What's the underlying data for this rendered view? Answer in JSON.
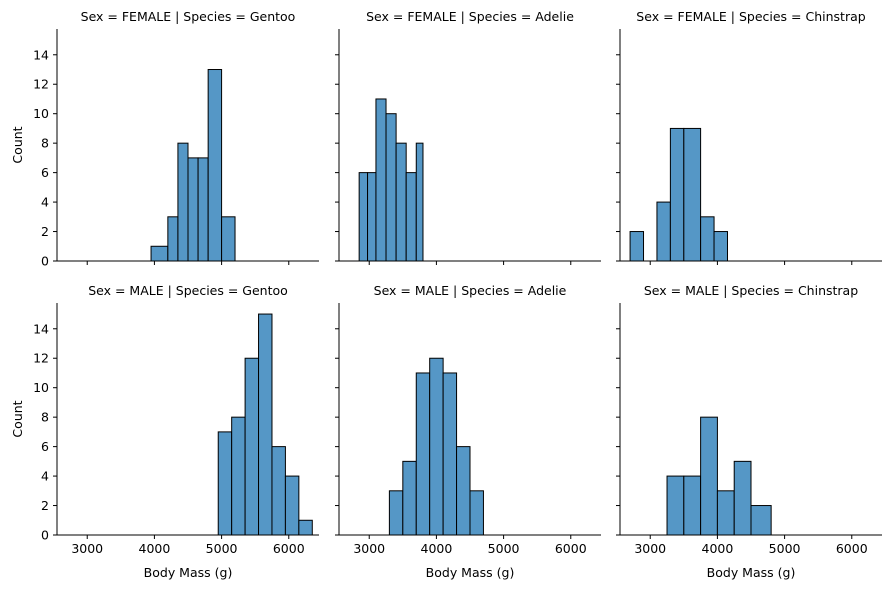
{
  "figure": {
    "bar_color": "#5597c6",
    "edge_color": "#000000",
    "xlabel": "Body Mass (g)",
    "ylabel": "Count",
    "xticks": [
      3000,
      4000,
      5000,
      6000
    ],
    "yticks": [
      0,
      2,
      4,
      6,
      8,
      10,
      12,
      14
    ],
    "xlim": [
      2550,
      6450
    ],
    "ylim": [
      0,
      15.75
    ]
  },
  "chart_data": [
    {
      "type": "bar",
      "title": "Sex = FEMALE | Species = Gentoo",
      "row": 0,
      "col": 0,
      "bins": [
        {
          "x0": 3950,
          "x1": 4200,
          "count": 1
        },
        {
          "x0": 4200,
          "x1": 4350,
          "count": 3
        },
        {
          "x0": 4350,
          "x1": 4500,
          "count": 8
        },
        {
          "x0": 4500,
          "x1": 4650,
          "count": 7
        },
        {
          "x0": 4650,
          "x1": 4800,
          "count": 7
        },
        {
          "x0": 4800,
          "x1": 5000,
          "count": 13
        },
        {
          "x0": 5000,
          "x1": 5200,
          "count": 3
        }
      ]
    },
    {
      "type": "bar",
      "title": "Sex = FEMALE | Species = Adelie",
      "row": 0,
      "col": 1,
      "bins": [
        {
          "x0": 2850,
          "x1": 2975,
          "count": 6
        },
        {
          "x0": 2975,
          "x1": 3100,
          "count": 6
        },
        {
          "x0": 3100,
          "x1": 3250,
          "count": 11
        },
        {
          "x0": 3250,
          "x1": 3400,
          "count": 10
        },
        {
          "x0": 3400,
          "x1": 3550,
          "count": 8
        },
        {
          "x0": 3550,
          "x1": 3700,
          "count": 6
        },
        {
          "x0": 3700,
          "x1": 3800,
          "count": 8
        }
      ]
    },
    {
      "type": "bar",
      "title": "Sex = FEMALE | Species = Chinstrap",
      "row": 0,
      "col": 2,
      "bins": [
        {
          "x0": 2700,
          "x1": 2900,
          "count": 2
        },
        {
          "x0": 3100,
          "x1": 3300,
          "count": 4
        },
        {
          "x0": 3300,
          "x1": 3500,
          "count": 9
        },
        {
          "x0": 3500,
          "x1": 3750,
          "count": 9
        },
        {
          "x0": 3750,
          "x1": 3950,
          "count": 3
        },
        {
          "x0": 3950,
          "x1": 4150,
          "count": 2
        }
      ]
    },
    {
      "type": "bar",
      "title": "Sex = MALE | Species = Gentoo",
      "row": 1,
      "col": 0,
      "bins": [
        {
          "x0": 4950,
          "x1": 5150,
          "count": 7
        },
        {
          "x0": 5150,
          "x1": 5350,
          "count": 8
        },
        {
          "x0": 5350,
          "x1": 5550,
          "count": 12
        },
        {
          "x0": 5550,
          "x1": 5750,
          "count": 15
        },
        {
          "x0": 5750,
          "x1": 5950,
          "count": 6
        },
        {
          "x0": 5950,
          "x1": 6150,
          "count": 4
        },
        {
          "x0": 6150,
          "x1": 6350,
          "count": 1
        }
      ]
    },
    {
      "type": "bar",
      "title": "Sex = MALE | Species = Adelie",
      "row": 1,
      "col": 1,
      "bins": [
        {
          "x0": 3300,
          "x1": 3500,
          "count": 3
        },
        {
          "x0": 3500,
          "x1": 3700,
          "count": 5
        },
        {
          "x0": 3700,
          "x1": 3900,
          "count": 11
        },
        {
          "x0": 3900,
          "x1": 4100,
          "count": 12
        },
        {
          "x0": 4100,
          "x1": 4300,
          "count": 11
        },
        {
          "x0": 4300,
          "x1": 4500,
          "count": 6
        },
        {
          "x0": 4500,
          "x1": 4700,
          "count": 3
        }
      ]
    },
    {
      "type": "bar",
      "title": "Sex = MALE | Species = Chinstrap",
      "row": 1,
      "col": 2,
      "bins": [
        {
          "x0": 3250,
          "x1": 3500,
          "count": 4
        },
        {
          "x0": 3500,
          "x1": 3750,
          "count": 4
        },
        {
          "x0": 3750,
          "x1": 4000,
          "count": 8
        },
        {
          "x0": 4000,
          "x1": 4250,
          "count": 3
        },
        {
          "x0": 4250,
          "x1": 4500,
          "count": 5
        },
        {
          "x0": 4500,
          "x1": 4800,
          "count": 2
        }
      ]
    }
  ]
}
